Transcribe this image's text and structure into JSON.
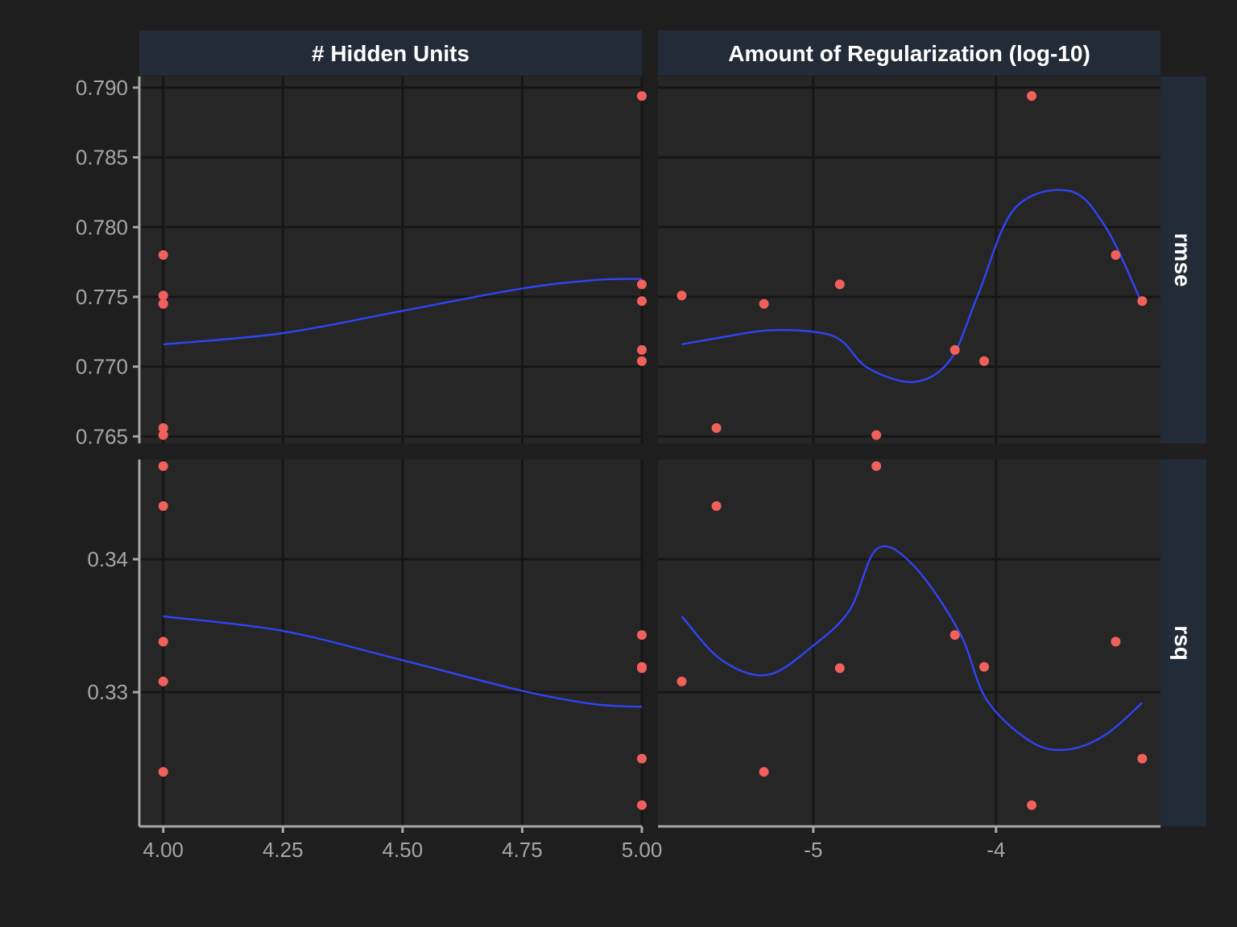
{
  "colors": {
    "background": "#1e1e1e",
    "panel": "#262626",
    "strip": "#222b38",
    "grid": "#161616",
    "axis": "#a6a6a6",
    "point": "#f1605b",
    "smooth": "#2f44f5"
  },
  "chart_data": {
    "type": "scatter",
    "facet_columns": [
      "# Hidden Units",
      "Amount of Regularization (log-10)"
    ],
    "facet_rows": [
      "rmse",
      "rsq"
    ],
    "x_axes": {
      "hidden_units": {
        "range": [
          3.95,
          5.0
        ],
        "ticks": [
          4.0,
          4.25,
          4.5,
          4.75,
          5.0
        ],
        "tick_labels": [
          "4.00",
          "4.25",
          "4.50",
          "4.75",
          "5.00"
        ]
      },
      "regularization": {
        "range": [
          -5.85,
          -3.1
        ],
        "ticks": [
          -5,
          -4
        ],
        "tick_labels": [
          "-5",
          "-4"
        ]
      }
    },
    "y_axes": {
      "rmse": {
        "range": [
          0.7645,
          0.7908
        ],
        "ticks": [
          0.765,
          0.77,
          0.775,
          0.78,
          0.785,
          0.79
        ],
        "tick_labels": [
          "0.765",
          "0.770",
          "0.775",
          "0.780",
          "0.785",
          "0.790"
        ]
      },
      "rsq": {
        "range": [
          0.3199,
          0.3475
        ],
        "ticks": [
          0.33,
          0.34
        ],
        "tick_labels": [
          "0.33",
          "0.34"
        ]
      }
    },
    "points": [
      {
        "hidden_units": 5,
        "regularization": -3.805,
        "rmse": 0.7894,
        "rsq": 0.3215
      },
      {
        "hidden_units": 4,
        "regularization": -3.345,
        "rmse": 0.778,
        "rsq": 0.3338
      },
      {
        "hidden_units": 5,
        "regularization": -4.855,
        "rmse": 0.7759,
        "rsq": 0.3318
      },
      {
        "hidden_units": 4,
        "regularization": -5.72,
        "rmse": 0.7751,
        "rsq": 0.3308
      },
      {
        "hidden_units": 5,
        "regularization": -3.2,
        "rmse": 0.7747,
        "rsq": 0.325
      },
      {
        "hidden_units": 4,
        "regularization": -5.27,
        "rmse": 0.7745,
        "rsq": 0.324
      },
      {
        "hidden_units": 5,
        "regularization": -4.225,
        "rmse": 0.7712,
        "rsq": 0.3343
      },
      {
        "hidden_units": 5,
        "regularization": -4.065,
        "rmse": 0.7704,
        "rsq": 0.3319
      },
      {
        "hidden_units": 4,
        "regularization": -5.53,
        "rmse": 0.7656,
        "rsq": 0.344
      },
      {
        "hidden_units": 4,
        "regularization": -4.655,
        "rmse": 0.7651,
        "rsq": 0.347
      }
    ],
    "smooth": {
      "hidden_units": {
        "rmse": [
          [
            4.0,
            0.7716
          ],
          [
            4.25,
            0.7724
          ],
          [
            4.5,
            0.774
          ],
          [
            4.75,
            0.7756
          ],
          [
            4.9,
            0.7762
          ],
          [
            5.0,
            0.7763
          ]
        ],
        "rsq": [
          [
            4.0,
            0.3357
          ],
          [
            4.25,
            0.3346
          ],
          [
            4.5,
            0.3324
          ],
          [
            4.75,
            0.3301
          ],
          [
            4.9,
            0.3291
          ],
          [
            5.0,
            0.3289
          ]
        ]
      },
      "regularization": {
        "rmse": [
          [
            -5.72,
            0.7716
          ],
          [
            -5.5,
            0.7721
          ],
          [
            -5.25,
            0.7726
          ],
          [
            -5.0,
            0.7725
          ],
          [
            -4.85,
            0.7719
          ],
          [
            -4.7,
            0.7699
          ],
          [
            -4.45,
            0.7689
          ],
          [
            -4.25,
            0.7705
          ],
          [
            -4.1,
            0.7751
          ],
          [
            -3.9,
            0.7813
          ],
          [
            -3.6,
            0.7826
          ],
          [
            -3.4,
            0.78
          ],
          [
            -3.2,
            0.7745
          ]
        ],
        "rsq": [
          [
            -5.72,
            0.3357
          ],
          [
            -5.5,
            0.3324
          ],
          [
            -5.25,
            0.3313
          ],
          [
            -5.0,
            0.3335
          ],
          [
            -4.8,
            0.3362
          ],
          [
            -4.65,
            0.3408
          ],
          [
            -4.45,
            0.3395
          ],
          [
            -4.2,
            0.3345
          ],
          [
            -4.05,
            0.3294
          ],
          [
            -3.8,
            0.3262
          ],
          [
            -3.6,
            0.3257
          ],
          [
            -3.4,
            0.3268
          ],
          [
            -3.2,
            0.3292
          ]
        ]
      }
    }
  }
}
